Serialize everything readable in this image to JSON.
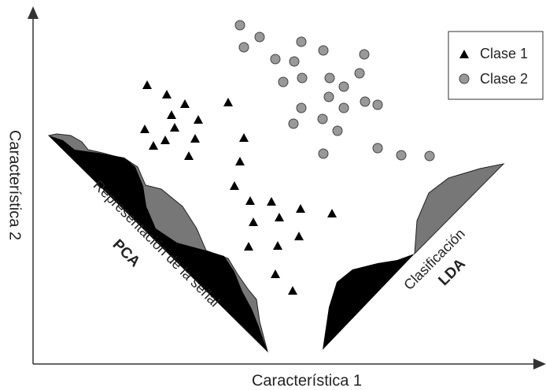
{
  "axes": {
    "x_label": "Característica 1",
    "y_label": "Característica 2"
  },
  "legend": [
    "Clase 1",
    "Clase 2"
  ],
  "annotations": {
    "pca": {
      "text": "Representación de la señal",
      "label": "PCA"
    },
    "lda": {
      "text": "Clasificación",
      "label": "LDA"
    }
  }
}
